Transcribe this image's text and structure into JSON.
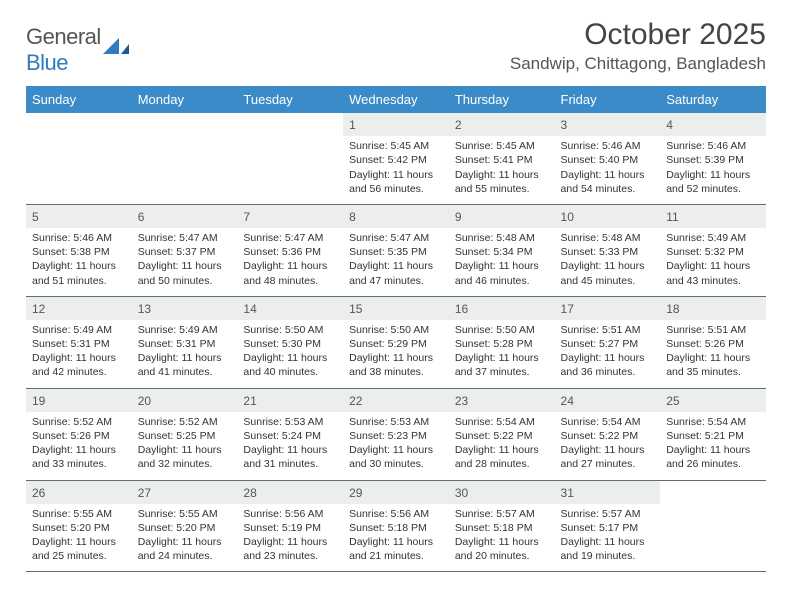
{
  "brand": {
    "part1": "General",
    "part2": "Blue"
  },
  "title": "October 2025",
  "location": "Sandwip, Chittagong, Bangladesh",
  "header_bg": "#3b8bc9",
  "days_of_week": [
    "Sunday",
    "Monday",
    "Tuesday",
    "Wednesday",
    "Thursday",
    "Friday",
    "Saturday"
  ],
  "weeks": [
    [
      null,
      null,
      null,
      {
        "n": "1",
        "sr": "5:45 AM",
        "ss": "5:42 PM",
        "dl": "11 hours and 56 minutes."
      },
      {
        "n": "2",
        "sr": "5:45 AM",
        "ss": "5:41 PM",
        "dl": "11 hours and 55 minutes."
      },
      {
        "n": "3",
        "sr": "5:46 AM",
        "ss": "5:40 PM",
        "dl": "11 hours and 54 minutes."
      },
      {
        "n": "4",
        "sr": "5:46 AM",
        "ss": "5:39 PM",
        "dl": "11 hours and 52 minutes."
      }
    ],
    [
      {
        "n": "5",
        "sr": "5:46 AM",
        "ss": "5:38 PM",
        "dl": "11 hours and 51 minutes."
      },
      {
        "n": "6",
        "sr": "5:47 AM",
        "ss": "5:37 PM",
        "dl": "11 hours and 50 minutes."
      },
      {
        "n": "7",
        "sr": "5:47 AM",
        "ss": "5:36 PM",
        "dl": "11 hours and 48 minutes."
      },
      {
        "n": "8",
        "sr": "5:47 AM",
        "ss": "5:35 PM",
        "dl": "11 hours and 47 minutes."
      },
      {
        "n": "9",
        "sr": "5:48 AM",
        "ss": "5:34 PM",
        "dl": "11 hours and 46 minutes."
      },
      {
        "n": "10",
        "sr": "5:48 AM",
        "ss": "5:33 PM",
        "dl": "11 hours and 45 minutes."
      },
      {
        "n": "11",
        "sr": "5:49 AM",
        "ss": "5:32 PM",
        "dl": "11 hours and 43 minutes."
      }
    ],
    [
      {
        "n": "12",
        "sr": "5:49 AM",
        "ss": "5:31 PM",
        "dl": "11 hours and 42 minutes."
      },
      {
        "n": "13",
        "sr": "5:49 AM",
        "ss": "5:31 PM",
        "dl": "11 hours and 41 minutes."
      },
      {
        "n": "14",
        "sr": "5:50 AM",
        "ss": "5:30 PM",
        "dl": "11 hours and 40 minutes."
      },
      {
        "n": "15",
        "sr": "5:50 AM",
        "ss": "5:29 PM",
        "dl": "11 hours and 38 minutes."
      },
      {
        "n": "16",
        "sr": "5:50 AM",
        "ss": "5:28 PM",
        "dl": "11 hours and 37 minutes."
      },
      {
        "n": "17",
        "sr": "5:51 AM",
        "ss": "5:27 PM",
        "dl": "11 hours and 36 minutes."
      },
      {
        "n": "18",
        "sr": "5:51 AM",
        "ss": "5:26 PM",
        "dl": "11 hours and 35 minutes."
      }
    ],
    [
      {
        "n": "19",
        "sr": "5:52 AM",
        "ss": "5:26 PM",
        "dl": "11 hours and 33 minutes."
      },
      {
        "n": "20",
        "sr": "5:52 AM",
        "ss": "5:25 PM",
        "dl": "11 hours and 32 minutes."
      },
      {
        "n": "21",
        "sr": "5:53 AM",
        "ss": "5:24 PM",
        "dl": "11 hours and 31 minutes."
      },
      {
        "n": "22",
        "sr": "5:53 AM",
        "ss": "5:23 PM",
        "dl": "11 hours and 30 minutes."
      },
      {
        "n": "23",
        "sr": "5:54 AM",
        "ss": "5:22 PM",
        "dl": "11 hours and 28 minutes."
      },
      {
        "n": "24",
        "sr": "5:54 AM",
        "ss": "5:22 PM",
        "dl": "11 hours and 27 minutes."
      },
      {
        "n": "25",
        "sr": "5:54 AM",
        "ss": "5:21 PM",
        "dl": "11 hours and 26 minutes."
      }
    ],
    [
      {
        "n": "26",
        "sr": "5:55 AM",
        "ss": "5:20 PM",
        "dl": "11 hours and 25 minutes."
      },
      {
        "n": "27",
        "sr": "5:55 AM",
        "ss": "5:20 PM",
        "dl": "11 hours and 24 minutes."
      },
      {
        "n": "28",
        "sr": "5:56 AM",
        "ss": "5:19 PM",
        "dl": "11 hours and 23 minutes."
      },
      {
        "n": "29",
        "sr": "5:56 AM",
        "ss": "5:18 PM",
        "dl": "11 hours and 21 minutes."
      },
      {
        "n": "30",
        "sr": "5:57 AM",
        "ss": "5:18 PM",
        "dl": "11 hours and 20 minutes."
      },
      {
        "n": "31",
        "sr": "5:57 AM",
        "ss": "5:17 PM",
        "dl": "11 hours and 19 minutes."
      },
      null
    ]
  ],
  "labels": {
    "sunrise": "Sunrise: ",
    "sunset": "Sunset: ",
    "daylight": "Daylight: "
  }
}
